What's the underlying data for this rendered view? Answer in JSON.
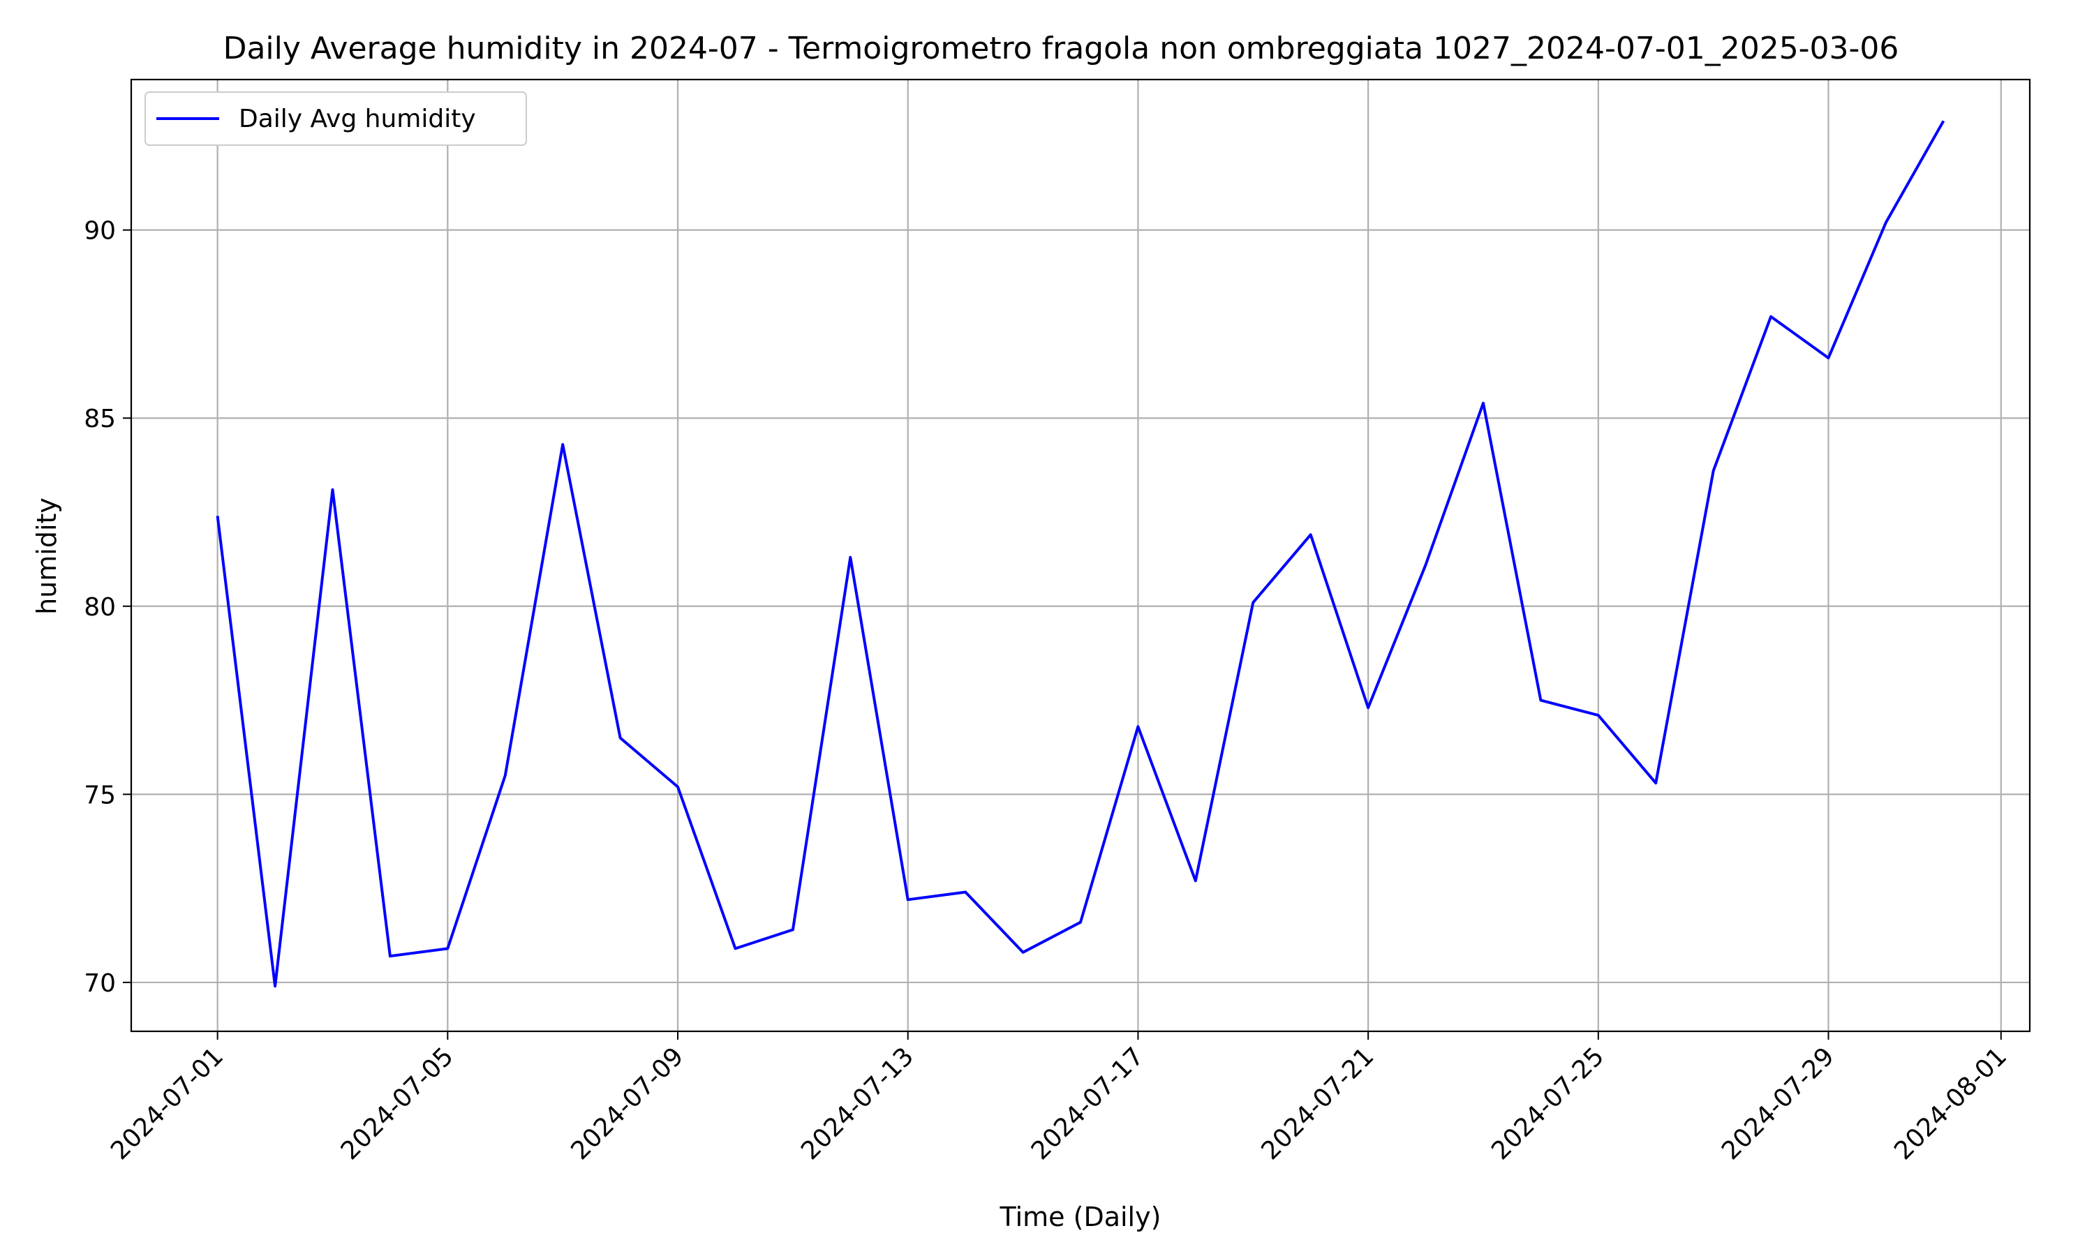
{
  "chart_data": {
    "type": "line",
    "title": "Daily Average humidity in 2024-07 - Termoigrometro fragola non ombreggiata 1027_2024-07-01_2025-03-06",
    "xlabel": "Time (Daily)",
    "ylabel": "humidity",
    "x_range": [
      "2024-06-29.5",
      "2024-08-01.5"
    ],
    "ylim": [
      68.7,
      94.0
    ],
    "grid": true,
    "legend_position": "top-left",
    "x_ticks": [
      "2024-07-01",
      "2024-07-05",
      "2024-07-09",
      "2024-07-13",
      "2024-07-17",
      "2024-07-21",
      "2024-07-25",
      "2024-07-29",
      "2024-08-01"
    ],
    "y_ticks": [
      70,
      75,
      80,
      85,
      90
    ],
    "series": [
      {
        "name": "Daily Avg humidity",
        "color": "#0000ff",
        "x": [
          "2024-07-01",
          "2024-07-02",
          "2024-07-03",
          "2024-07-04",
          "2024-07-05",
          "2024-07-06",
          "2024-07-07",
          "2024-07-08",
          "2024-07-09",
          "2024-07-10",
          "2024-07-11",
          "2024-07-12",
          "2024-07-13",
          "2024-07-14",
          "2024-07-15",
          "2024-07-16",
          "2024-07-17",
          "2024-07-18",
          "2024-07-19",
          "2024-07-20",
          "2024-07-21",
          "2024-07-22",
          "2024-07-23",
          "2024-07-24",
          "2024-07-25",
          "2024-07-26",
          "2024-07-27",
          "2024-07-28",
          "2024-07-29",
          "2024-07-30",
          "2024-07-31"
        ],
        "values": [
          82.4,
          69.9,
          83.1,
          70.7,
          70.9,
          75.5,
          84.3,
          76.5,
          75.2,
          70.9,
          71.4,
          81.3,
          72.2,
          72.4,
          70.8,
          71.6,
          76.8,
          72.7,
          80.1,
          81.9,
          77.3,
          81.1,
          85.4,
          77.5,
          77.1,
          75.3,
          83.6,
          87.7,
          86.6,
          90.2,
          92.9
        ]
      }
    ]
  }
}
